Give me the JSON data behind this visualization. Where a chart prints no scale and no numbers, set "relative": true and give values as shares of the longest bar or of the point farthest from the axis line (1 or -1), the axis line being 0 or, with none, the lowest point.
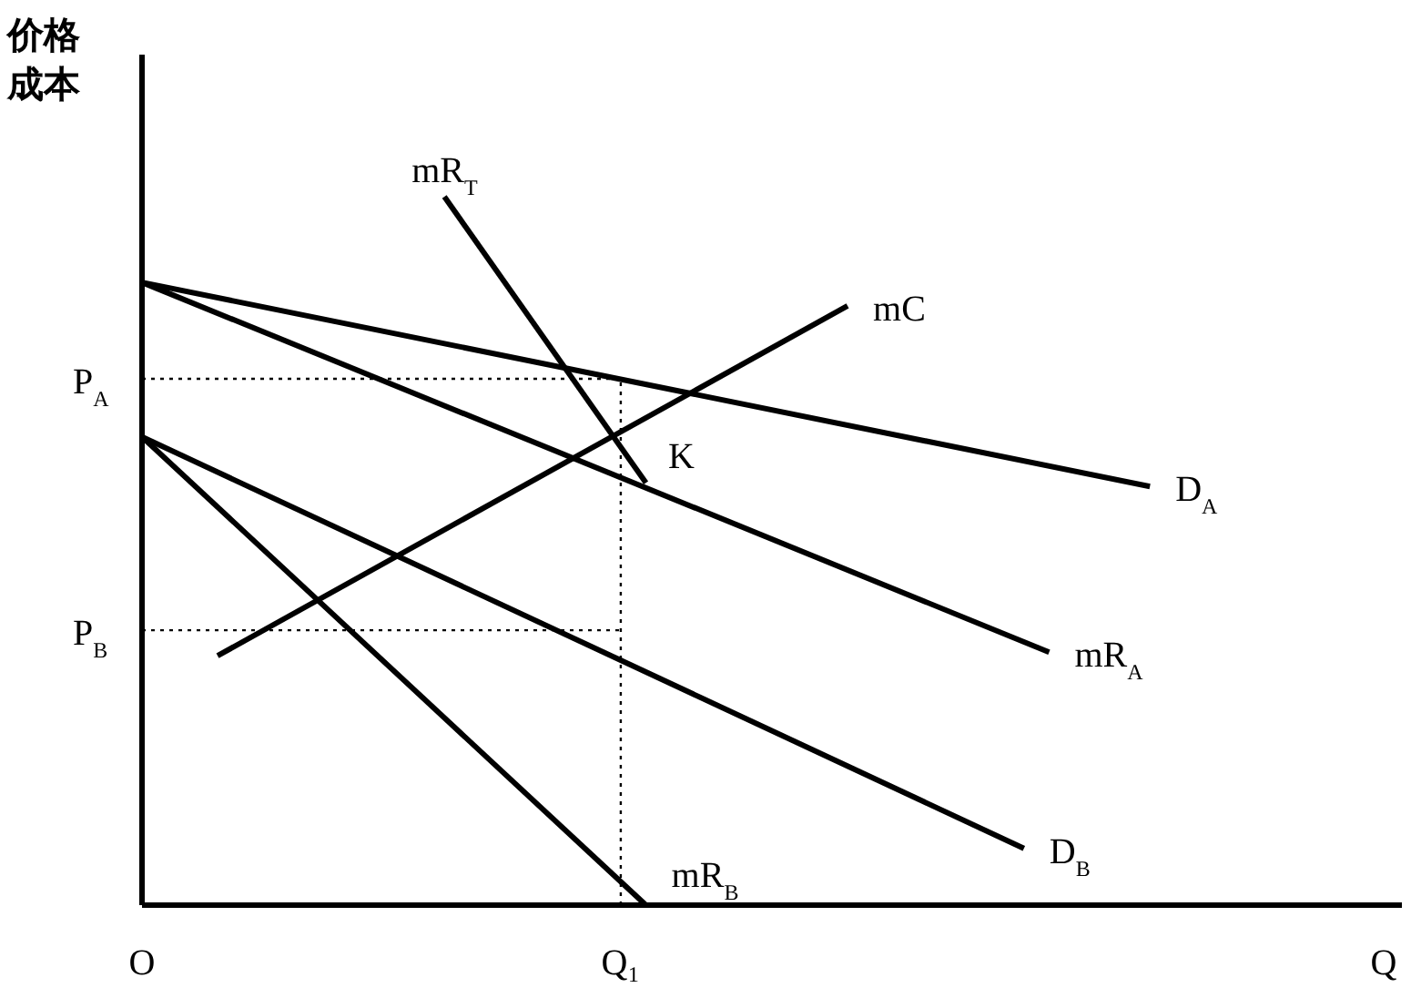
{
  "chart_data": {
    "type": "line",
    "relative": true,
    "ylabel": "价格成本",
    "xlabel": "Q",
    "legend": false,
    "line_style": "solid",
    "marker": "none",
    "categories": [
      "O",
      null,
      null,
      null,
      null,
      null,
      null,
      null,
      null,
      null,
      null,
      null,
      null,
      null,
      null,
      null,
      null,
      null,
      null,
      "Q₁",
      null,
      null,
      null,
      null,
      null,
      null,
      null,
      null,
      null,
      null,
      null,
      null,
      null,
      null,
      null,
      null,
      null,
      null,
      null,
      null,
      null,
      null,
      null,
      null,
      null,
      null,
      null,
      null,
      null,
      null,
      null
    ],
    "series": [
      {
        "name": "mR$_{T}$",
        "color": "#000000",
        "values": [
          null,
          null,
          null,
          null,
          null,
          null,
          null,
          null,
          null,
          null,
          null,
          null,
          1,
          null,
          null,
          null,
          null,
          null,
          null,
          null,
          0.596,
          null,
          null,
          null,
          null,
          null,
          null,
          null,
          null,
          null,
          null,
          null,
          null,
          null,
          null,
          null,
          null,
          null,
          null,
          null,
          null,
          null,
          null,
          null,
          null,
          null,
          null,
          null,
          null,
          null,
          null
        ]
      },
      {
        "name": "mC",
        "color": "#000000",
        "values": [
          null,
          null,
          null,
          0.352,
          null,
          null,
          null,
          null,
          null,
          null,
          null,
          null,
          null,
          null,
          null,
          null,
          null,
          null,
          null,
          null,
          null,
          null,
          null,
          null,
          null,
          null,
          null,
          null,
          0.846,
          null,
          null,
          null,
          null,
          null,
          null,
          null,
          null,
          null,
          null,
          null,
          null,
          null,
          null,
          null,
          null,
          null,
          null,
          null,
          null,
          null,
          null
        ]
      },
      {
        "name": "D$_{A}$",
        "color": "#000000",
        "values": [
          0.879,
          null,
          null,
          null,
          null,
          null,
          null,
          null,
          null,
          null,
          null,
          null,
          null,
          null,
          null,
          null,
          null,
          null,
          null,
          null,
          null,
          null,
          null,
          null,
          null,
          null,
          null,
          null,
          null,
          null,
          null,
          null,
          null,
          null,
          null,
          null,
          null,
          null,
          null,
          null,
          0.591,
          null,
          null,
          null,
          null,
          null,
          null,
          null,
          null,
          null,
          null
        ]
      },
      {
        "name": "mR$_{A}$",
        "color": "#000000",
        "values": [
          0.879,
          null,
          null,
          null,
          null,
          null,
          null,
          null,
          null,
          null,
          null,
          null,
          null,
          null,
          null,
          null,
          null,
          null,
          null,
          null,
          null,
          null,
          null,
          null,
          null,
          null,
          null,
          null,
          null,
          null,
          null,
          null,
          null,
          null,
          null,
          null,
          0.357,
          null,
          null,
          null,
          null,
          null,
          null,
          null,
          null,
          null,
          null,
          null,
          null,
          null,
          null
        ]
      },
      {
        "name": "D$_{B}$",
        "color": "#000000",
        "values": [
          0.661,
          null,
          null,
          null,
          null,
          null,
          null,
          null,
          null,
          null,
          null,
          null,
          null,
          null,
          null,
          null,
          null,
          null,
          null,
          null,
          null,
          null,
          null,
          null,
          null,
          null,
          null,
          null,
          null,
          null,
          null,
          null,
          null,
          null,
          null,
          0.08,
          null,
          null,
          null,
          null,
          null,
          null,
          null,
          null,
          null,
          null,
          null,
          null,
          null,
          null,
          null
        ]
      },
      {
        "name": "mR$_{B}$",
        "color": "#000000",
        "values": [
          0.661,
          null,
          null,
          null,
          null,
          null,
          null,
          null,
          null,
          null,
          null,
          null,
          null,
          null,
          null,
          null,
          null,
          null,
          null,
          null,
          0,
          null,
          null,
          null,
          null,
          null,
          null,
          null,
          null,
          null,
          null,
          null,
          null,
          null,
          null,
          null,
          null,
          null,
          null,
          null,
          null,
          null,
          null,
          null,
          null,
          null,
          null,
          null,
          null,
          null,
          null
        ]
      }
    ],
    "ref_lines": [
      {
        "axis": "y",
        "value": 0.743,
        "label": "P$_{A}$",
        "line_style": "dotted",
        "color": "#000000"
      },
      {
        "axis": "y",
        "value": 0.388,
        "label": "P$_{B}$",
        "line_style": "dotted",
        "color": "#000000"
      },
      {
        "axis": "x",
        "value": "Q₁",
        "line_style": "dotted",
        "color": "#000000"
      }
    ],
    "annotations": [
      {
        "text": "K",
        "x": "Q₁",
        "y": 0.668
      }
    ]
  }
}
